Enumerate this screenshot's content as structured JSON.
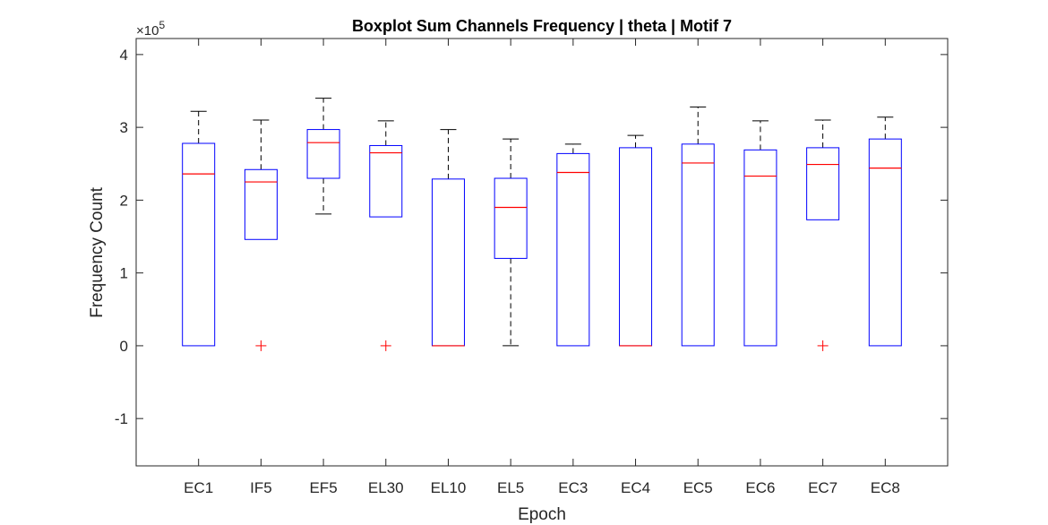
{
  "chart_data": {
    "type": "boxplot",
    "title": "Boxplot Sum Channels Frequency | theta | Motif 7",
    "xlabel": "Epoch",
    "ylabel": "Frequency Count",
    "y_exponent_label": "×10",
    "y_exponent_power": "5",
    "ylim": [
      -1.65,
      4.22
    ],
    "yticks": [
      -1,
      0,
      1,
      2,
      3,
      4
    ],
    "ytick_labels": [
      "-1",
      "0",
      "1",
      "2",
      "3",
      "4"
    ],
    "grid": false,
    "colors": {
      "box": "#0000ff",
      "median": "#ff0000",
      "whisker": "#000000",
      "outlier": "#ff0000",
      "axes": "#262626"
    },
    "categories": [
      "EC1",
      "IF5",
      "EF5",
      "EL30",
      "EL10",
      "EL5",
      "EC3",
      "EC4",
      "EC5",
      "EC6",
      "EC7",
      "EC8"
    ],
    "boxes": [
      {
        "min": 0,
        "q1": 0,
        "median": 2.36,
        "q3": 2.78,
        "max": 3.22,
        "outliers": []
      },
      {
        "min": 1.46,
        "q1": 1.46,
        "median": 2.25,
        "q3": 2.42,
        "max": 3.1,
        "outliers": [
          0
        ]
      },
      {
        "min": 1.81,
        "q1": 2.3,
        "median": 2.79,
        "q3": 2.97,
        "max": 3.4,
        "outliers": []
      },
      {
        "min": 1.77,
        "q1": 1.77,
        "median": 2.65,
        "q3": 2.75,
        "max": 3.09,
        "outliers": [
          0
        ]
      },
      {
        "min": 0,
        "q1": 0,
        "median": 0,
        "q3": 2.29,
        "max": 2.97,
        "outliers": []
      },
      {
        "min": 0,
        "q1": 1.2,
        "median": 1.9,
        "q3": 2.3,
        "max": 2.84,
        "outliers": []
      },
      {
        "min": 0,
        "q1": 0,
        "median": 2.38,
        "q3": 2.64,
        "max": 2.77,
        "outliers": []
      },
      {
        "min": 0,
        "q1": 0,
        "median": 0,
        "q3": 2.72,
        "max": 2.89,
        "outliers": []
      },
      {
        "min": 0,
        "q1": 0,
        "median": 2.51,
        "q3": 2.77,
        "max": 3.28,
        "outliers": []
      },
      {
        "min": 0,
        "q1": 0,
        "median": 2.33,
        "q3": 2.69,
        "max": 3.09,
        "outliers": []
      },
      {
        "min": 1.73,
        "q1": 1.73,
        "median": 2.49,
        "q3": 2.72,
        "max": 3.1,
        "outliers": [
          0
        ]
      },
      {
        "min": 0,
        "q1": 0,
        "median": 2.44,
        "q3": 2.84,
        "max": 3.14,
        "outliers": []
      }
    ]
  }
}
